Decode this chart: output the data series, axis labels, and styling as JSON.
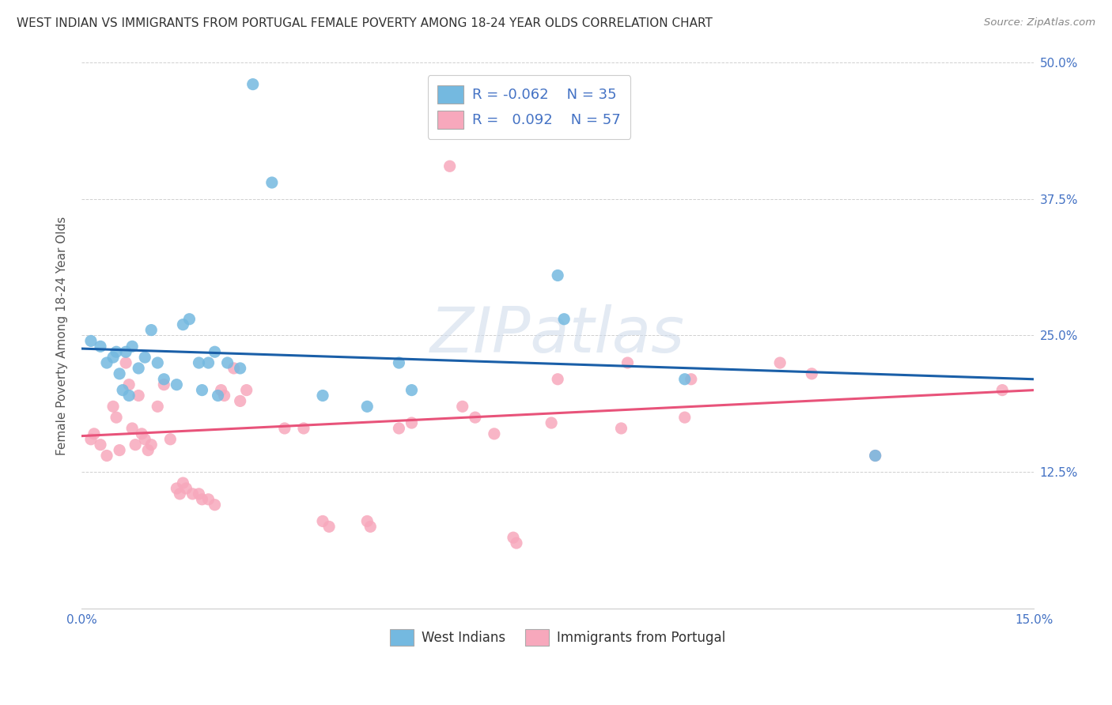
{
  "title": "WEST INDIAN VS IMMIGRANTS FROM PORTUGAL FEMALE POVERTY AMONG 18-24 YEAR OLDS CORRELATION CHART",
  "source": "Source: ZipAtlas.com",
  "ylabel": "Female Poverty Among 18-24 Year Olds",
  "xlim": [
    0.0,
    15.0
  ],
  "ylim": [
    0.0,
    50.0
  ],
  "ytick_positions": [
    0.0,
    12.5,
    25.0,
    37.5,
    50.0
  ],
  "ytick_labels": [
    "",
    "12.5%",
    "25.0%",
    "37.5%",
    "50.0%"
  ],
  "xtick_positions": [
    0.0,
    3.0,
    6.0,
    9.0,
    12.0,
    15.0
  ],
  "xtick_labels": [
    "0.0%",
    "",
    "",
    "",
    "",
    "15.0%"
  ],
  "blue_color": "#92c5de",
  "pink_color": "#f4a582",
  "blue_scatter_color": "#74b9e0",
  "pink_scatter_color": "#f7a8bc",
  "blue_line_color": "#1a5fa8",
  "pink_line_color": "#e8537a",
  "legend_r_blue": "-0.062",
  "legend_n_blue": "35",
  "legend_r_pink": "0.092",
  "legend_n_pink": "57",
  "watermark": "ZIPatlas",
  "title_color": "#333333",
  "axis_color": "#4472c4",
  "blue_points": [
    [
      0.15,
      24.5
    ],
    [
      0.3,
      24.0
    ],
    [
      0.4,
      22.5
    ],
    [
      0.5,
      23.0
    ],
    [
      0.55,
      23.5
    ],
    [
      0.6,
      21.5
    ],
    [
      0.65,
      20.0
    ],
    [
      0.7,
      23.5
    ],
    [
      0.75,
      19.5
    ],
    [
      0.8,
      24.0
    ],
    [
      0.9,
      22.0
    ],
    [
      1.0,
      23.0
    ],
    [
      1.1,
      25.5
    ],
    [
      1.2,
      22.5
    ],
    [
      1.3,
      21.0
    ],
    [
      1.5,
      20.5
    ],
    [
      1.6,
      26.0
    ],
    [
      1.7,
      26.5
    ],
    [
      1.85,
      22.5
    ],
    [
      1.9,
      20.0
    ],
    [
      2.0,
      22.5
    ],
    [
      2.1,
      23.5
    ],
    [
      2.15,
      19.5
    ],
    [
      2.3,
      22.5
    ],
    [
      2.5,
      22.0
    ],
    [
      2.7,
      48.0
    ],
    [
      3.0,
      39.0
    ],
    [
      3.8,
      19.5
    ],
    [
      4.5,
      18.5
    ],
    [
      5.0,
      22.5
    ],
    [
      5.2,
      20.0
    ],
    [
      7.5,
      30.5
    ],
    [
      7.6,
      26.5
    ],
    [
      9.5,
      21.0
    ],
    [
      12.5,
      14.0
    ]
  ],
  "pink_points": [
    [
      0.15,
      15.5
    ],
    [
      0.2,
      16.0
    ],
    [
      0.3,
      15.0
    ],
    [
      0.4,
      14.0
    ],
    [
      0.5,
      18.5
    ],
    [
      0.55,
      17.5
    ],
    [
      0.6,
      14.5
    ],
    [
      0.7,
      22.5
    ],
    [
      0.75,
      20.5
    ],
    [
      0.8,
      16.5
    ],
    [
      0.85,
      15.0
    ],
    [
      0.9,
      19.5
    ],
    [
      0.95,
      16.0
    ],
    [
      1.0,
      15.5
    ],
    [
      1.05,
      14.5
    ],
    [
      1.1,
      15.0
    ],
    [
      1.2,
      18.5
    ],
    [
      1.3,
      20.5
    ],
    [
      1.4,
      15.5
    ],
    [
      1.5,
      11.0
    ],
    [
      1.55,
      10.5
    ],
    [
      1.6,
      11.5
    ],
    [
      1.65,
      11.0
    ],
    [
      1.75,
      10.5
    ],
    [
      1.85,
      10.5
    ],
    [
      1.9,
      10.0
    ],
    [
      2.0,
      10.0
    ],
    [
      2.1,
      9.5
    ],
    [
      2.2,
      20.0
    ],
    [
      2.25,
      19.5
    ],
    [
      2.4,
      22.0
    ],
    [
      2.5,
      19.0
    ],
    [
      2.6,
      20.0
    ],
    [
      3.2,
      16.5
    ],
    [
      3.5,
      16.5
    ],
    [
      3.8,
      8.0
    ],
    [
      3.9,
      7.5
    ],
    [
      4.5,
      8.0
    ],
    [
      4.55,
      7.5
    ],
    [
      5.0,
      16.5
    ],
    [
      5.2,
      17.0
    ],
    [
      5.8,
      40.5
    ],
    [
      6.0,
      18.5
    ],
    [
      6.2,
      17.5
    ],
    [
      6.5,
      16.0
    ],
    [
      6.8,
      6.5
    ],
    [
      6.85,
      6.0
    ],
    [
      7.4,
      17.0
    ],
    [
      7.5,
      21.0
    ],
    [
      8.5,
      16.5
    ],
    [
      8.6,
      22.5
    ],
    [
      9.5,
      17.5
    ],
    [
      9.6,
      21.0
    ],
    [
      11.0,
      22.5
    ],
    [
      11.5,
      21.5
    ],
    [
      12.5,
      14.0
    ],
    [
      14.5,
      20.0
    ]
  ]
}
